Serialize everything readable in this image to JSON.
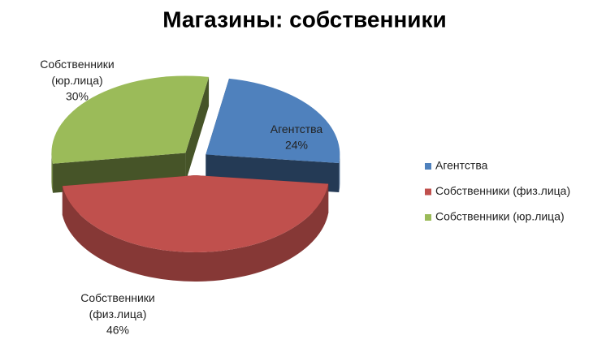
{
  "chart_data": {
    "type": "pie",
    "title": "Магазины: собственники",
    "categories": [
      "Агентства",
      "Собственники (физ.лица)",
      "Собственники (юр.лица)"
    ],
    "values": [
      24,
      46,
      30
    ],
    "value_labels": [
      "24%",
      "46%",
      "30%"
    ],
    "colors": [
      "#4f81bd",
      "#c0504d",
      "#9bbb59"
    ],
    "legend": "right"
  }
}
